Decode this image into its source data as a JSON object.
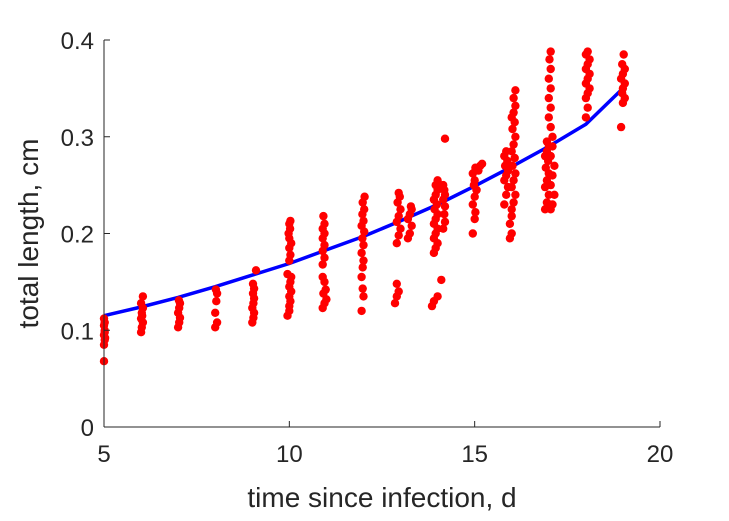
{
  "chart_data": {
    "type": "scatter",
    "xlabel": "time since infection, d",
    "ylabel": "total length, cm",
    "xlim": [
      5,
      20
    ],
    "ylim": [
      0,
      0.4
    ],
    "xticks": [
      "5",
      "10",
      "15",
      "20"
    ],
    "yticks": [
      "0",
      "0.1",
      "0.2",
      "0.3",
      "0.4"
    ],
    "grid": false,
    "legend": "none",
    "colors": {
      "points": "#ff0000",
      "fit": "#0000ff",
      "axis": "#262626"
    },
    "series": [
      {
        "kind": "points",
        "points": [
          [
            5.0,
            0.068
          ],
          [
            5.0,
            0.085
          ],
          [
            5.02,
            0.09
          ],
          [
            5.0,
            0.095
          ],
          [
            5.02,
            0.1
          ],
          [
            5.0,
            0.105
          ],
          [
            5.02,
            0.108
          ],
          [
            5.0,
            0.112
          ],
          [
            5.03,
            0.092
          ],
          [
            5.02,
            0.098
          ],
          [
            6.0,
            0.098
          ],
          [
            6.02,
            0.103
          ],
          [
            6.05,
            0.108
          ],
          [
            6.0,
            0.112
          ],
          [
            6.02,
            0.118
          ],
          [
            6.05,
            0.123
          ],
          [
            6.0,
            0.128
          ],
          [
            6.05,
            0.135
          ],
          [
            6.03,
            0.115
          ],
          [
            7.0,
            0.103
          ],
          [
            7.03,
            0.108
          ],
          [
            7.05,
            0.113
          ],
          [
            7.0,
            0.118
          ],
          [
            7.03,
            0.123
          ],
          [
            7.05,
            0.128
          ],
          [
            7.02,
            0.131
          ],
          [
            8.0,
            0.103
          ],
          [
            8.05,
            0.108
          ],
          [
            8.0,
            0.118
          ],
          [
            8.03,
            0.13
          ],
          [
            8.05,
            0.138
          ],
          [
            8.02,
            0.142
          ],
          [
            9.0,
            0.108
          ],
          [
            9.03,
            0.113
          ],
          [
            9.05,
            0.118
          ],
          [
            9.0,
            0.123
          ],
          [
            9.03,
            0.128
          ],
          [
            9.05,
            0.133
          ],
          [
            9.02,
            0.138
          ],
          [
            9.05,
            0.143
          ],
          [
            9.1,
            0.162
          ],
          [
            9.02,
            0.148
          ],
          [
            9.95,
            0.115
          ],
          [
            10.0,
            0.12
          ],
          [
            10.0,
            0.125
          ],
          [
            10.03,
            0.13
          ],
          [
            10.0,
            0.135
          ],
          [
            10.05,
            0.14
          ],
          [
            10.0,
            0.145
          ],
          [
            10.03,
            0.15
          ],
          [
            10.05,
            0.155
          ],
          [
            9.95,
            0.158
          ],
          [
            10.0,
            0.172
          ],
          [
            10.03,
            0.178
          ],
          [
            10.0,
            0.185
          ],
          [
            10.05,
            0.19
          ],
          [
            10.0,
            0.195
          ],
          [
            9.98,
            0.2
          ],
          [
            10.02,
            0.205
          ],
          [
            10.0,
            0.21
          ],
          [
            10.03,
            0.213
          ],
          [
            10.9,
            0.123
          ],
          [
            10.95,
            0.128
          ],
          [
            11.0,
            0.132
          ],
          [
            10.92,
            0.138
          ],
          [
            10.98,
            0.142
          ],
          [
            10.9,
            0.155
          ],
          [
            10.95,
            0.15
          ],
          [
            10.9,
            0.168
          ],
          [
            10.95,
            0.175
          ],
          [
            10.9,
            0.182
          ],
          [
            10.95,
            0.188
          ],
          [
            10.9,
            0.195
          ],
          [
            10.95,
            0.2
          ],
          [
            10.9,
            0.205
          ],
          [
            10.95,
            0.21
          ],
          [
            10.92,
            0.218
          ],
          [
            11.95,
            0.12
          ],
          [
            12.0,
            0.135
          ],
          [
            11.98,
            0.143
          ],
          [
            11.95,
            0.155
          ],
          [
            11.98,
            0.165
          ],
          [
            12.0,
            0.172
          ],
          [
            11.95,
            0.18
          ],
          [
            12.0,
            0.188
          ],
          [
            11.97,
            0.195
          ],
          [
            12.02,
            0.202
          ],
          [
            11.95,
            0.208
          ],
          [
            12.0,
            0.213
          ],
          [
            11.97,
            0.22
          ],
          [
            12.02,
            0.225
          ],
          [
            11.98,
            0.232
          ],
          [
            12.03,
            0.238
          ],
          [
            12.85,
            0.128
          ],
          [
            12.9,
            0.135
          ],
          [
            12.95,
            0.14
          ],
          [
            12.9,
            0.148
          ],
          [
            12.9,
            0.19
          ],
          [
            12.95,
            0.198
          ],
          [
            13.0,
            0.205
          ],
          [
            12.9,
            0.212
          ],
          [
            12.95,
            0.218
          ],
          [
            13.0,
            0.225
          ],
          [
            12.92,
            0.232
          ],
          [
            12.98,
            0.238
          ],
          [
            12.95,
            0.242
          ],
          [
            13.2,
            0.195
          ],
          [
            13.25,
            0.2
          ],
          [
            13.3,
            0.208
          ],
          [
            13.2,
            0.215
          ],
          [
            13.25,
            0.22
          ],
          [
            13.3,
            0.225
          ],
          [
            13.28,
            0.228
          ],
          [
            13.85,
            0.125
          ],
          [
            13.9,
            0.13
          ],
          [
            14.0,
            0.135
          ],
          [
            14.1,
            0.152
          ],
          [
            13.9,
            0.18
          ],
          [
            13.95,
            0.185
          ],
          [
            14.0,
            0.19
          ],
          [
            13.9,
            0.195
          ],
          [
            13.95,
            0.2
          ],
          [
            14.0,
            0.205
          ],
          [
            13.9,
            0.21
          ],
          [
            13.95,
            0.215
          ],
          [
            14.0,
            0.22
          ],
          [
            13.92,
            0.225
          ],
          [
            13.98,
            0.23
          ],
          [
            13.9,
            0.235
          ],
          [
            13.95,
            0.24
          ],
          [
            14.0,
            0.245
          ],
          [
            13.95,
            0.25
          ],
          [
            14.0,
            0.255
          ],
          [
            14.15,
            0.205
          ],
          [
            14.2,
            0.212
          ],
          [
            14.18,
            0.22
          ],
          [
            14.2,
            0.228
          ],
          [
            14.15,
            0.235
          ],
          [
            14.2,
            0.24
          ],
          [
            14.18,
            0.245
          ],
          [
            14.15,
            0.25
          ],
          [
            14.2,
            0.298
          ],
          [
            14.95,
            0.2
          ],
          [
            15.0,
            0.215
          ],
          [
            15.02,
            0.222
          ],
          [
            14.95,
            0.23
          ],
          [
            15.0,
            0.238
          ],
          [
            15.05,
            0.245
          ],
          [
            14.98,
            0.25
          ],
          [
            15.0,
            0.255
          ],
          [
            14.95,
            0.262
          ],
          [
            15.02,
            0.268
          ],
          [
            15.1,
            0.265
          ],
          [
            15.15,
            0.27
          ],
          [
            15.2,
            0.272
          ],
          [
            15.05,
            0.245
          ],
          [
            15.8,
            0.23
          ],
          [
            15.85,
            0.24
          ],
          [
            15.9,
            0.248
          ],
          [
            15.8,
            0.255
          ],
          [
            15.85,
            0.26
          ],
          [
            15.9,
            0.265
          ],
          [
            15.82,
            0.27
          ],
          [
            15.88,
            0.275
          ],
          [
            15.8,
            0.28
          ],
          [
            15.85,
            0.285
          ],
          [
            15.95,
            0.195
          ],
          [
            16.0,
            0.2
          ],
          [
            15.95,
            0.21
          ],
          [
            16.0,
            0.218
          ],
          [
            16.0,
            0.225
          ],
          [
            16.05,
            0.232
          ],
          [
            16.1,
            0.24
          ],
          [
            16.0,
            0.248
          ],
          [
            16.05,
            0.255
          ],
          [
            16.1,
            0.262
          ],
          [
            16.02,
            0.27
          ],
          [
            16.08,
            0.278
          ],
          [
            16.0,
            0.285
          ],
          [
            16.05,
            0.292
          ],
          [
            16.1,
            0.3
          ],
          [
            16.02,
            0.308
          ],
          [
            16.08,
            0.315
          ],
          [
            16.0,
            0.32
          ],
          [
            16.05,
            0.325
          ],
          [
            16.1,
            0.332
          ],
          [
            16.05,
            0.34
          ],
          [
            16.1,
            0.348
          ],
          [
            16.9,
            0.225
          ],
          [
            16.95,
            0.232
          ],
          [
            17.0,
            0.24
          ],
          [
            16.9,
            0.248
          ],
          [
            16.95,
            0.255
          ],
          [
            17.0,
            0.262
          ],
          [
            16.92,
            0.268
          ],
          [
            16.98,
            0.275
          ],
          [
            16.9,
            0.28
          ],
          [
            16.95,
            0.285
          ],
          [
            17.0,
            0.29
          ],
          [
            16.95,
            0.295
          ],
          [
            17.05,
            0.225
          ],
          [
            17.1,
            0.23
          ],
          [
            17.15,
            0.24
          ],
          [
            17.05,
            0.25
          ],
          [
            17.1,
            0.26
          ],
          [
            17.15,
            0.27
          ],
          [
            17.05,
            0.28
          ],
          [
            17.1,
            0.29
          ],
          [
            17.1,
            0.3
          ],
          [
            17.05,
            0.31
          ],
          [
            17.0,
            0.32
          ],
          [
            17.05,
            0.33
          ],
          [
            17.0,
            0.34
          ],
          [
            17.05,
            0.35
          ],
          [
            17.0,
            0.36
          ],
          [
            17.05,
            0.37
          ],
          [
            17.02,
            0.38
          ],
          [
            17.05,
            0.388
          ],
          [
            18.0,
            0.32
          ],
          [
            18.05,
            0.33
          ],
          [
            18.0,
            0.34
          ],
          [
            18.05,
            0.345
          ],
          [
            18.1,
            0.35
          ],
          [
            18.0,
            0.355
          ],
          [
            18.05,
            0.36
          ],
          [
            18.1,
            0.365
          ],
          [
            18.0,
            0.37
          ],
          [
            18.05,
            0.375
          ],
          [
            18.1,
            0.38
          ],
          [
            18.0,
            0.385
          ],
          [
            18.05,
            0.388
          ],
          [
            18.95,
            0.31
          ],
          [
            19.0,
            0.335
          ],
          [
            19.05,
            0.34
          ],
          [
            18.98,
            0.345
          ],
          [
            19.0,
            0.35
          ],
          [
            19.05,
            0.355
          ],
          [
            18.95,
            0.36
          ],
          [
            19.0,
            0.365
          ],
          [
            19.05,
            0.37
          ],
          [
            18.98,
            0.375
          ],
          [
            19.02,
            0.385
          ]
        ]
      },
      {
        "kind": "fit",
        "x": [
          5,
          6,
          7,
          8,
          9,
          10,
          11,
          12,
          13,
          14,
          15,
          16,
          17,
          18,
          19
        ],
        "y": [
          0.115,
          0.124,
          0.134,
          0.145,
          0.157,
          0.169,
          0.183,
          0.197,
          0.213,
          0.23,
          0.249,
          0.269,
          0.29,
          0.313,
          0.35
        ]
      }
    ]
  }
}
